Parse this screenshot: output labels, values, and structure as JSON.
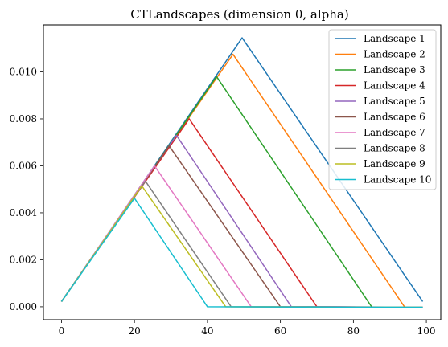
{
  "chart_data": {
    "type": "line",
    "title": "CTLandscapes (dimension 0, alpha)",
    "xlabel": "",
    "ylabel": "",
    "xlim": [
      -4.95,
      103.95
    ],
    "ylim": [
      -0.00055,
      0.012
    ],
    "xticks": [
      0,
      20,
      40,
      60,
      80,
      100
    ],
    "yticks": [
      0.0,
      0.002,
      0.004,
      0.006,
      0.008,
      0.01
    ],
    "xtick_labels": [
      "0",
      "20",
      "40",
      "60",
      "80",
      "100"
    ],
    "ytick_labels": [
      "0.000",
      "0.002",
      "0.004",
      "0.006",
      "0.008",
      "0.010"
    ],
    "grid": false,
    "legend": "top-right",
    "series": [
      {
        "name": "Landscape 1",
        "color": "#1f77b4",
        "points": [
          [
            0,
            0.00022
          ],
          [
            49.5,
            0.01145
          ],
          [
            99,
            0.00022
          ]
        ]
      },
      {
        "name": "Landscape 2",
        "color": "#ff7f0e",
        "points": [
          [
            0,
            0.00022
          ],
          [
            47,
            0.01075
          ],
          [
            94,
            0.0
          ]
        ]
      },
      {
        "name": "Landscape 3",
        "color": "#2ca02c",
        "points": [
          [
            0,
            0.00022
          ],
          [
            42.5,
            0.0098
          ],
          [
            85,
            0.0
          ]
        ]
      },
      {
        "name": "Landscape 4",
        "color": "#d62728",
        "points": [
          [
            0,
            0.00022
          ],
          [
            35,
            0.008
          ],
          [
            70,
            0.0
          ],
          [
            99,
            -2e-05
          ]
        ]
      },
      {
        "name": "Landscape 5",
        "color": "#9467bd",
        "points": [
          [
            0,
            0.00022
          ],
          [
            31.5,
            0.0073
          ],
          [
            63,
            0.0
          ],
          [
            99,
            -2e-05
          ]
        ]
      },
      {
        "name": "Landscape 6",
        "color": "#8c564b",
        "points": [
          [
            0,
            0.00022
          ],
          [
            29.5,
            0.00685
          ],
          [
            60,
            0.0
          ],
          [
            99,
            -2e-05
          ]
        ]
      },
      {
        "name": "Landscape 7",
        "color": "#e377c2",
        "points": [
          [
            0,
            0.00022
          ],
          [
            25.5,
            0.006
          ],
          [
            52,
            0.0
          ],
          [
            99,
            -2e-05
          ]
        ]
      },
      {
        "name": "Landscape 8",
        "color": "#7f7f7f",
        "points": [
          [
            0,
            0.00022
          ],
          [
            23,
            0.00535
          ],
          [
            46.5,
            0.0
          ],
          [
            99,
            -2e-05
          ]
        ]
      },
      {
        "name": "Landscape 9",
        "color": "#bcbd22",
        "points": [
          [
            0,
            0.00022
          ],
          [
            22,
            0.00515
          ],
          [
            45,
            0.0
          ],
          [
            99,
            -2e-05
          ]
        ]
      },
      {
        "name": "Landscape 10",
        "color": "#17becf",
        "points": [
          [
            0,
            0.00022
          ],
          [
            20,
            0.00462
          ],
          [
            40,
            0.0
          ],
          [
            99,
            -2e-05
          ]
        ]
      }
    ]
  }
}
